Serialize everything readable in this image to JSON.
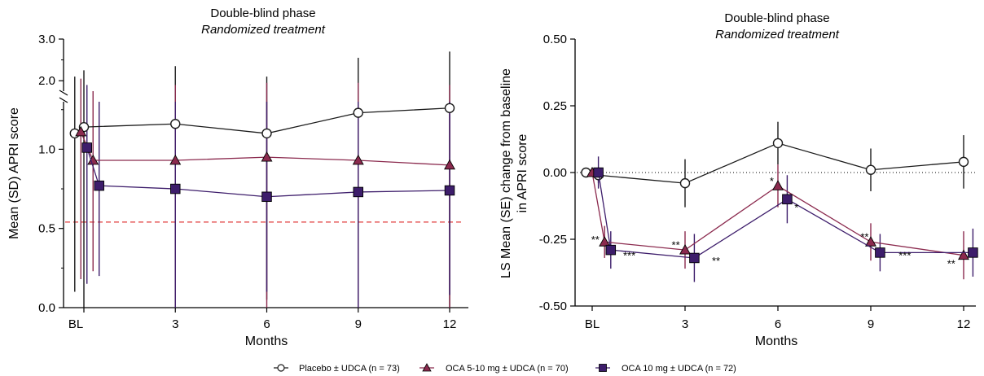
{
  "colors": {
    "placebo": "#1a1a1a",
    "oca510": "#8b2a4e",
    "oca10": "#3d1d6b",
    "ref_line": "#e03a3a",
    "axis": "#000000"
  },
  "legend": {
    "placebo": "Placebo ± UDCA (n = 73)",
    "oca510": "OCA 5-10 mg ± UDCA (n = 70)",
    "oca10": "OCA 10 mg ± UDCA (n = 72)"
  },
  "chart_data": [
    {
      "type": "line",
      "title": "Double-blind phase",
      "subtitle": "Randomized treatment",
      "xlabel": "Months",
      "ylabel": "Mean (SD) APRI score",
      "x_ticks": [
        "BL",
        "3",
        "6",
        "9",
        "12"
      ],
      "y_ticks": [
        "0.0",
        "0.5",
        "1.0",
        "2.0",
        "3.0"
      ],
      "y_axis_broken": true,
      "reference_line": {
        "y": 0.54,
        "style": "dashed",
        "color": "red"
      },
      "series": [
        {
          "name": "Placebo ± UDCA (n = 73)",
          "marker": "circle",
          "points": [
            {
              "x": -0.3,
              "y": 1.1,
              "sd_low": 0.1,
              "sd_high": 2.1
            },
            {
              "x": 0.0,
              "y": 1.14,
              "sd_low": 0.0,
              "sd_high": 2.25
            },
            {
              "x": 3.0,
              "y": 1.16,
              "sd_low": 0.0,
              "sd_high": 2.35
            },
            {
              "x": 6.0,
              "y": 1.1,
              "sd_low": 0.05,
              "sd_high": 2.1
            },
            {
              "x": 9.0,
              "y": 1.23,
              "sd_low": 0.0,
              "sd_high": 2.55
            },
            {
              "x": 12.0,
              "y": 1.26,
              "sd_low": 0.0,
              "sd_high": 2.7
            }
          ]
        },
        {
          "name": "OCA 5-10 mg ± UDCA (n = 70)",
          "marker": "triangle",
          "points": [
            {
              "x": -0.1,
              "y": 1.11,
              "sd_low": 0.18,
              "sd_high": 2.05
            },
            {
              "x": 0.3,
              "y": 0.93,
              "sd_low": 0.23,
              "sd_high": 1.75
            },
            {
              "x": 3.0,
              "y": 0.93,
              "sd_low": 0.0,
              "sd_high": 1.9
            },
            {
              "x": 6.0,
              "y": 0.95,
              "sd_low": 0.0,
              "sd_high": 1.95
            },
            {
              "x": 9.0,
              "y": 0.93,
              "sd_low": 0.0,
              "sd_high": 1.95
            },
            {
              "x": 12.0,
              "y": 0.9,
              "sd_low": 0.0,
              "sd_high": 1.9
            }
          ]
        },
        {
          "name": "OCA 10 mg ± UDCA (n = 72)",
          "marker": "square",
          "points": [
            {
              "x": 0.1,
              "y": 1.01,
              "sd_low": 0.15,
              "sd_high": 1.9
            },
            {
              "x": 0.5,
              "y": 0.77,
              "sd_low": 0.2,
              "sd_high": 1.35
            },
            {
              "x": 3.0,
              "y": 0.75,
              "sd_low": 0.0,
              "sd_high": 1.65
            },
            {
              "x": 6.0,
              "y": 0.7,
              "sd_low": 0.1,
              "sd_high": 1.35
            },
            {
              "x": 9.0,
              "y": 0.73,
              "sd_low": 0.0,
              "sd_high": 1.4
            },
            {
              "x": 12.0,
              "y": 0.74,
              "sd_low": 0.08,
              "sd_high": 1.4
            }
          ]
        }
      ]
    },
    {
      "type": "line",
      "title": "Double-blind phase",
      "subtitle": "Randomized treatment",
      "xlabel": "Months",
      "ylabel": "LS Mean (SE) change from baseline in APRI score",
      "x_ticks": [
        "BL",
        "3",
        "6",
        "9",
        "12"
      ],
      "y_ticks": [
        "-0.50",
        "-0.25",
        "0.00",
        "0.25",
        "0.50"
      ],
      "ylim": [
        -0.5,
        0.5
      ],
      "reference_line": {
        "y": 0.0,
        "style": "dotted",
        "color": "black"
      },
      "series": [
        {
          "name": "Placebo ± UDCA (n = 73)",
          "marker": "circle",
          "points": [
            {
              "x": -0.2,
              "y": 0.0,
              "se": 0.0
            },
            {
              "x": 0.2,
              "y": -0.01,
              "se": 0.03
            },
            {
              "x": 3.0,
              "y": -0.04,
              "se": 0.09
            },
            {
              "x": 6.0,
              "y": 0.11,
              "se": 0.08
            },
            {
              "x": 9.0,
              "y": 0.01,
              "se": 0.08
            },
            {
              "x": 12.0,
              "y": 0.04,
              "se": 0.1
            }
          ]
        },
        {
          "name": "OCA 5-10 mg ± UDCA (n = 70)",
          "marker": "triangle",
          "points": [
            {
              "x": 0.0,
              "y": 0.0,
              "se": 0.0
            },
            {
              "x": 0.4,
              "y": -0.26,
              "se": 0.06
            },
            {
              "x": 3.0,
              "y": -0.29,
              "se": 0.07
            },
            {
              "x": 6.0,
              "y": -0.05,
              "se": 0.08
            },
            {
              "x": 9.0,
              "y": -0.26,
              "se": 0.07
            },
            {
              "x": 12.0,
              "y": -0.31,
              "se": 0.09
            }
          ]
        },
        {
          "name": "OCA 10 mg ± UDCA (n = 72)",
          "marker": "square",
          "points": [
            {
              "x": 0.2,
              "y": 0.0,
              "se": 0.06
            },
            {
              "x": 0.6,
              "y": -0.29,
              "se": 0.07
            },
            {
              "x": 3.3,
              "y": -0.32,
              "se": 0.09
            },
            {
              "x": 6.3,
              "y": -0.1,
              "se": 0.09
            },
            {
              "x": 9.3,
              "y": -0.3,
              "se": 0.07
            },
            {
              "x": 12.3,
              "y": -0.3,
              "se": 0.09
            }
          ]
        }
      ],
      "annotations": [
        {
          "text": "**",
          "x": 0.1,
          "y": -0.25
        },
        {
          "text": "***",
          "x": 1.2,
          "y": -0.31
        },
        {
          "text": "**",
          "x": 2.7,
          "y": -0.27
        },
        {
          "text": "**",
          "x": 4.0,
          "y": -0.33
        },
        {
          "text": "*",
          "x": 5.8,
          "y": -0.03
        },
        {
          "text": "*",
          "x": 6.6,
          "y": -0.13
        },
        {
          "text": "**",
          "x": 8.8,
          "y": -0.24
        },
        {
          "text": "***",
          "x": 10.1,
          "y": -0.31
        },
        {
          "text": "**",
          "x": 11.6,
          "y": -0.34
        },
        {
          "text": "**",
          "x": 12.8,
          "y": -0.29
        }
      ]
    }
  ]
}
